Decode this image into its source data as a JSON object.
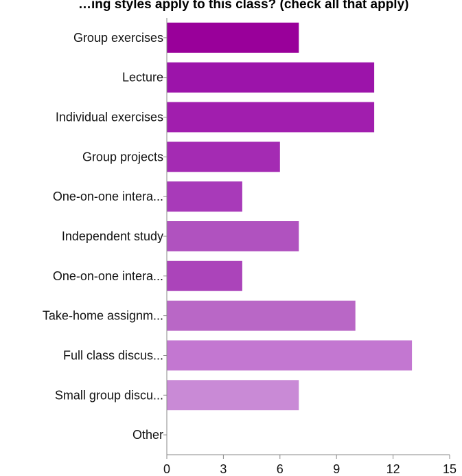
{
  "chart_data": {
    "type": "bar",
    "orientation": "horizontal",
    "title": "…ing styles apply to this class? (check all that apply)",
    "categories": [
      "Group exercises",
      "Lecture",
      "Individual exercises",
      "Group projects",
      "One-on-one intera...",
      "Independent study",
      "One-on-one intera...",
      "Take-home assignm...",
      "Full class discus...",
      "Small group discu...",
      "Other"
    ],
    "values": [
      7,
      11,
      11,
      6,
      4,
      7,
      4,
      10,
      13,
      7,
      0
    ],
    "xlim": [
      0,
      15
    ],
    "xticks": [
      "0",
      "3",
      "6",
      "9",
      "12",
      "15"
    ],
    "xlabel": "",
    "ylabel": "",
    "grid": false,
    "colors": [
      "#99009a",
      "#9c14aa",
      "#a11eae",
      "#a42bb3",
      "#a83ab9",
      "#b052bf",
      "#ab44ba",
      "#b967c6",
      "#c377d1",
      "#c98ad6",
      "#cc99d9"
    ]
  }
}
